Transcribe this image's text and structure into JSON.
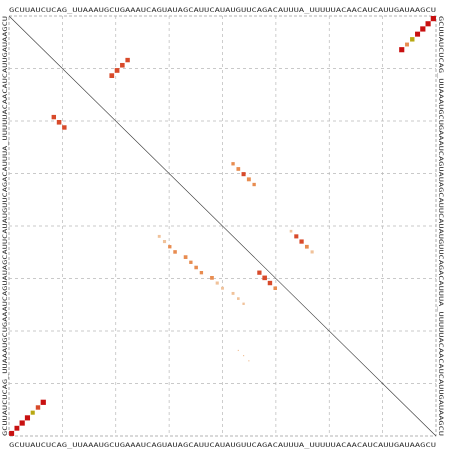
{
  "sequence": "GCUUAUCUCAG_UUAAAUGCUGAAAUCAGUAUAGCAUUCAUAUGUUCAGACAUUUA_UUUUUACAACAUCAUUGAUAAGCU",
  "grid": {
    "divisions": 8,
    "line_color": "#b8b8b8",
    "frame_color": "#9a9a9a",
    "diagonal_color": "#333333"
  },
  "palette": {
    "high": "#c81010",
    "mid": "#d84a2a",
    "moderate": "#b8a812",
    "low": "#e88c50",
    "faint": "#f0c29a"
  },
  "dot_plot": {
    "cells": [
      {
        "i": 0,
        "j": 80,
        "p": 0.98
      },
      {
        "i": 1,
        "j": 79,
        "p": 0.95
      },
      {
        "i": 2,
        "j": 78,
        "p": 0.98
      },
      {
        "i": 3,
        "j": 77,
        "p": 0.9
      },
      {
        "i": 4,
        "j": 76,
        "p": 0.7
      },
      {
        "i": 5,
        "j": 75,
        "p": 0.55
      },
      {
        "i": 6,
        "j": 74,
        "p": 0.95
      },
      {
        "i": 19,
        "j": 8,
        "p": 0.7
      },
      {
        "i": 20,
        "j": 9,
        "p": 0.75
      },
      {
        "i": 21,
        "j": 10,
        "p": 0.7
      },
      {
        "i": 8,
        "j": 22,
        "p": 0.7
      },
      {
        "i": 9,
        "j": 21,
        "p": 0.75
      },
      {
        "i": 10,
        "j": 20,
        "p": 0.8
      },
      {
        "i": 11,
        "j": 19,
        "p": 0.8
      },
      {
        "i": 42,
        "j": 28,
        "p": 0.3
      },
      {
        "i": 43,
        "j": 29,
        "p": 0.35
      },
      {
        "i": 44,
        "j": 30,
        "p": 0.4
      },
      {
        "i": 45,
        "j": 31,
        "p": 0.45
      },
      {
        "i": 46,
        "j": 33,
        "p": 0.5
      },
      {
        "i": 47,
        "j": 34,
        "p": 0.4
      },
      {
        "i": 48,
        "j": 35,
        "p": 0.45
      },
      {
        "i": 49,
        "j": 36,
        "p": 0.4
      },
      {
        "i": 50,
        "j": 38,
        "p": 0.5
      },
      {
        "i": 51,
        "j": 39,
        "p": 0.35
      },
      {
        "i": 52,
        "j": 40,
        "p": 0.3
      },
      {
        "i": 53,
        "j": 42,
        "p": 0.3
      },
      {
        "i": 54,
        "j": 43,
        "p": 0.25
      },
      {
        "i": 55,
        "j": 44,
        "p": 0.2
      },
      {
        "i": 28,
        "j": 42,
        "p": 0.4
      },
      {
        "i": 29,
        "j": 43,
        "p": 0.5
      },
      {
        "i": 30,
        "j": 44,
        "p": 0.6
      },
      {
        "i": 31,
        "j": 45,
        "p": 0.55
      },
      {
        "i": 32,
        "j": 46,
        "p": 0.4
      },
      {
        "i": 49,
        "j": 47,
        "p": 0.65
      },
      {
        "i": 50,
        "j": 48,
        "p": 0.75
      },
      {
        "i": 51,
        "j": 49,
        "p": 0.7
      },
      {
        "i": 52,
        "j": 50,
        "p": 0.45
      },
      {
        "i": 64,
        "j": 43,
        "p": 0.05
      },
      {
        "i": 65,
        "j": 44,
        "p": 0.05
      },
      {
        "i": 66,
        "j": 45,
        "p": 0.05
      },
      {
        "i": 41,
        "j": 53,
        "p": 0.25
      },
      {
        "i": 42,
        "j": 54,
        "p": 0.6
      },
      {
        "i": 43,
        "j": 55,
        "p": 0.65
      },
      {
        "i": 44,
        "j": 56,
        "p": 0.5
      },
      {
        "i": 45,
        "j": 57,
        "p": 0.35
      },
      {
        "i": 74,
        "j": 6,
        "p": 0.98
      },
      {
        "i": 75,
        "j": 5,
        "p": 0.7
      },
      {
        "i": 76,
        "j": 4,
        "p": 0.6
      },
      {
        "i": 77,
        "j": 3,
        "p": 0.95
      },
      {
        "i": 78,
        "j": 2,
        "p": 0.98
      },
      {
        "i": 79,
        "j": 1,
        "p": 0.85
      },
      {
        "i": 80,
        "j": 0,
        "p": 0.9
      }
    ]
  }
}
